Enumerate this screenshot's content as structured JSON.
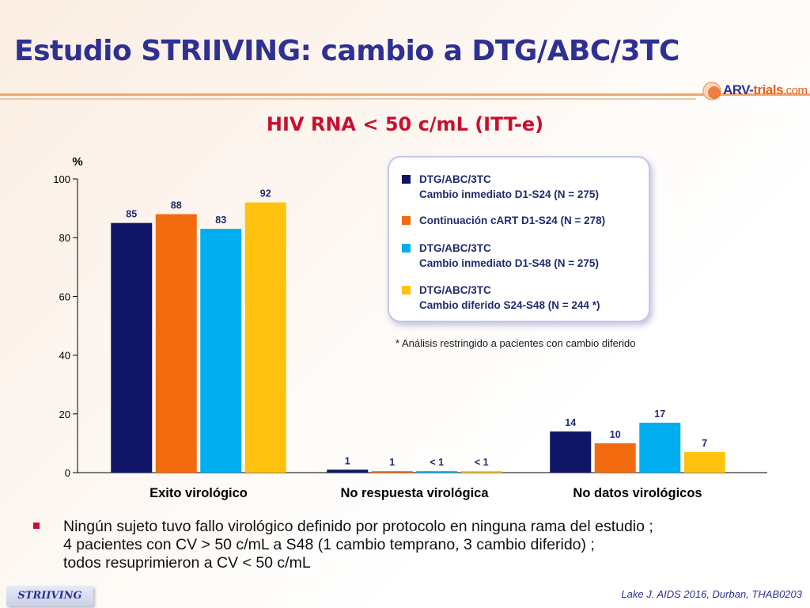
{
  "header": {
    "title": "Estudio STRIIVING: cambio a DTG/ABC/3TC",
    "logo": {
      "prefix": "ARV-",
      "accent": "trials",
      "suffix": ".com"
    }
  },
  "colors": {
    "title": "#2e3192",
    "chart_title": "#c8102e",
    "dtg_immediate_s24": "#0f1466",
    "cart_continuation": "#f26b0f",
    "dtg_immediate_s48": "#00aeef",
    "dtg_deferred": "#ffc20e"
  },
  "chart_data": {
    "type": "bar",
    "title": "HIV RNA < 50 c/mL (ITT-e)",
    "ylabel": "%",
    "ylim": [
      0,
      100
    ],
    "yticks": [
      0,
      20,
      40,
      60,
      80,
      100
    ],
    "categories": [
      "Exito virológico",
      "No respuesta virológica",
      "No datos virológicos"
    ],
    "series": [
      {
        "name": "DTG/ABC/3TC\nCambio inmediato D1-S24 (N = 275)",
        "color": "#0f1466",
        "values": [
          85,
          1,
          14
        ],
        "labels": [
          "85",
          "1",
          "14"
        ]
      },
      {
        "name": "Continuación cART D1-S24 (N = 278)",
        "color": "#f26b0f",
        "values": [
          88,
          0.5,
          10
        ],
        "labels": [
          "88",
          "1",
          "10"
        ]
      },
      {
        "name": "DTG/ABC/3TC\nCambio inmediato D1-S48  (N = 275)",
        "color": "#00aeef",
        "values": [
          83,
          0.5,
          17
        ],
        "labels": [
          "83",
          "< 1",
          "17"
        ]
      },
      {
        "name": "DTG/ABC/3TC\nCambio diferido S24-S48 (N = 244 *)",
        "color": "#ffc20e",
        "values": [
          92,
          0.5,
          7
        ],
        "labels": [
          "92",
          "< 1",
          "7"
        ]
      }
    ],
    "footnote": "* Análisis restringido a pacientes con cambio diferido",
    "legend_position": "top-right"
  },
  "notes": {
    "bullet": "Ningún sujeto tuvo fallo virológico definido por protocolo en ninguna rama del estudio ;\n4 pacientes con CV > 50 c/mL a S48 (1 cambio temprano, 3 cambio diferido) ;\ntodos resuprimieron a CV < 50 c/mL"
  },
  "footer": {
    "tag": "STRIIVING",
    "citation": "Lake J. AIDS 2016, Durban, THAB0203"
  }
}
